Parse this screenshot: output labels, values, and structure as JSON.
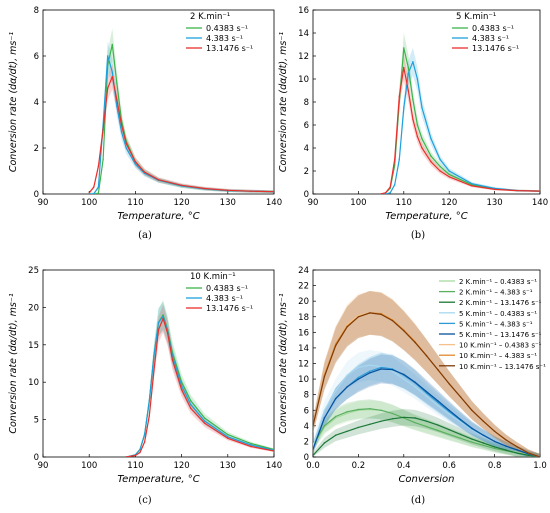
{
  "panel_tags": [
    "(a)",
    "(b)",
    "(c)",
    "(d)"
  ],
  "colors": {
    "0.4383": "#3cb44b",
    "4.383": "#1ea0dc",
    "13.1476": "#e8302c",
    "d": [
      "#a6dba0",
      "#5aae61",
      "#1b7837",
      "#a6d8f0",
      "#2b9ad6",
      "#08519c",
      "#f7c08a",
      "#e08a2c",
      "#7f3b08"
    ]
  },
  "chart_data": [
    {
      "type": "line",
      "title": "",
      "legend_title": "2 K.min⁻¹",
      "legend_position": "top-right",
      "xlabel": "Temperature, °C",
      "ylabel": "Conversion rate (dα/dt), ms⁻¹",
      "xlim": [
        90,
        140
      ],
      "ylim": [
        0,
        8
      ],
      "xticks": [
        "90",
        "100",
        "110",
        "120",
        "130",
        "140"
      ],
      "yticks": [
        "0",
        "2",
        "4",
        "6",
        "8"
      ],
      "x": [
        100,
        101,
        102,
        103,
        104,
        105,
        106,
        107,
        108,
        110,
        112,
        115,
        120,
        125,
        130,
        135,
        140
      ],
      "series": [
        {
          "name": "0.4383 s⁻¹",
          "values": [
            0.0,
            0.0,
            0.03,
            1.5,
            5.6,
            6.5,
            4.8,
            3.2,
            2.3,
            1.4,
            0.95,
            0.6,
            0.35,
            0.22,
            0.15,
            0.12,
            0.1
          ]
        },
        {
          "name": "4.383 s⁻¹",
          "values": [
            0.0,
            0.01,
            0.3,
            3.0,
            6.0,
            5.3,
            3.8,
            2.7,
            2.0,
            1.3,
            0.9,
            0.6,
            0.35,
            0.22,
            0.15,
            0.12,
            0.1
          ]
        },
        {
          "name": "13.1476 s⁻¹",
          "values": [
            0.05,
            0.3,
            1.2,
            2.8,
            4.6,
            5.1,
            4.1,
            3.0,
            2.2,
            1.4,
            0.95,
            0.62,
            0.38,
            0.24,
            0.16,
            0.12,
            0.1
          ]
        }
      ]
    },
    {
      "type": "line",
      "title": "",
      "legend_title": "5 K.min⁻¹",
      "legend_position": "top-right",
      "xlabel": "Temperature, °C",
      "ylabel": "Conversion rate (dα/dt), ms⁻¹",
      "xlim": [
        90,
        140
      ],
      "ylim": [
        0,
        16
      ],
      "xticks": [
        "90",
        "100",
        "110",
        "120",
        "130",
        "140"
      ],
      "yticks": [
        "0",
        "2",
        "4",
        "6",
        "8",
        "10",
        "12",
        "14",
        "16"
      ],
      "x": [
        105,
        106,
        107,
        108,
        109,
        110,
        111,
        112,
        113,
        114,
        116,
        118,
        120,
        125,
        130,
        135,
        140
      ],
      "series": [
        {
          "name": "0.4383 s⁻¹",
          "values": [
            0.0,
            0.1,
            0.5,
            2.5,
            8.0,
            12.7,
            11.0,
            8.2,
            6.0,
            4.8,
            3.3,
            2.4,
            1.7,
            0.8,
            0.45,
            0.3,
            0.25
          ]
        },
        {
          "name": "4.383 s⁻¹",
          "values": [
            0.0,
            0.0,
            0.1,
            0.8,
            3.0,
            7.5,
            10.5,
            11.5,
            10.0,
            7.5,
            4.8,
            3.0,
            2.0,
            0.9,
            0.5,
            0.3,
            0.25
          ]
        },
        {
          "name": "13.1476 s⁻¹",
          "values": [
            0.0,
            0.1,
            0.6,
            3.0,
            8.5,
            11.0,
            9.0,
            6.5,
            5.0,
            4.0,
            2.8,
            2.0,
            1.5,
            0.7,
            0.4,
            0.3,
            0.25
          ]
        }
      ]
    },
    {
      "type": "line",
      "title": "",
      "legend_title": "10 K.min⁻¹",
      "legend_position": "top-right",
      "xlabel": "Temperature, °C",
      "ylabel": "Conversion rate (dα/dt), ms⁻¹",
      "xlim": [
        90,
        140
      ],
      "ylim": [
        0,
        25
      ],
      "xticks": [
        "90",
        "100",
        "110",
        "120",
        "130",
        "140"
      ],
      "yticks": [
        "0",
        "5",
        "10",
        "15",
        "20",
        "25"
      ],
      "x": [
        108,
        110,
        111,
        112,
        113,
        114,
        115,
        116,
        117,
        118,
        120,
        122,
        125,
        130,
        135,
        140
      ],
      "series": [
        {
          "name": "0.4383 s⁻¹",
          "values": [
            0.0,
            0.3,
            1.0,
            3.0,
            7.5,
            13.5,
            18.0,
            19.0,
            17.0,
            14.0,
            10.0,
            7.5,
            5.2,
            3.0,
            1.8,
            1.0
          ]
        },
        {
          "name": "4.383 s⁻¹",
          "values": [
            0.0,
            0.3,
            1.0,
            3.0,
            7.5,
            13.5,
            18.0,
            18.8,
            16.8,
            13.5,
            9.5,
            7.0,
            4.8,
            2.7,
            1.6,
            0.9
          ]
        },
        {
          "name": "13.1476 s⁻¹",
          "values": [
            0.0,
            0.2,
            0.6,
            2.0,
            5.5,
            11.5,
            17.0,
            18.5,
            16.5,
            13.0,
            9.0,
            6.5,
            4.5,
            2.5,
            1.4,
            0.8
          ]
        }
      ]
    },
    {
      "type": "line",
      "title": "",
      "legend_title": "",
      "legend_position": "top-right",
      "xlabel": "Conversion",
      "ylabel": "Conversion rate (dα/dt), ms⁻¹",
      "xlim": [
        0.0,
        1.0
      ],
      "ylim": [
        0,
        24
      ],
      "xticks": [
        "0.0",
        "0.2",
        "0.4",
        "0.6",
        "0.8",
        "1.0"
      ],
      "yticks": [
        "0",
        "2",
        "4",
        "6",
        "8",
        "10",
        "12",
        "14",
        "16",
        "18",
        "20",
        "22",
        "24"
      ],
      "x": [
        0.0,
        0.05,
        0.1,
        0.15,
        0.2,
        0.25,
        0.3,
        0.35,
        0.4,
        0.45,
        0.5,
        0.55,
        0.6,
        0.65,
        0.7,
        0.75,
        0.8,
        0.85,
        0.9,
        0.95,
        1.0
      ],
      "series": [
        {
          "name": "2 K.min⁻¹ – 0.4383 s⁻¹",
          "values": [
            1.2,
            3.8,
            5.0,
            5.6,
            6.0,
            6.1,
            6.0,
            5.6,
            5.0,
            4.5,
            4.0,
            3.5,
            3.0,
            2.5,
            2.0,
            1.6,
            1.2,
            0.9,
            0.6,
            0.3,
            0.0
          ]
        },
        {
          "name": "2 K.min⁻¹ – 4.383 s⁻¹",
          "values": [
            1.5,
            4.0,
            5.2,
            5.8,
            6.1,
            6.2,
            6.0,
            5.6,
            5.0,
            4.4,
            3.9,
            3.4,
            2.9,
            2.4,
            1.9,
            1.5,
            1.1,
            0.8,
            0.5,
            0.25,
            0.0
          ]
        },
        {
          "name": "2 K.min⁻¹ – 13.1476 s⁻¹",
          "values": [
            0.2,
            1.8,
            2.8,
            3.3,
            3.8,
            4.2,
            4.6,
            4.9,
            5.1,
            5.0,
            4.6,
            4.1,
            3.5,
            2.9,
            2.3,
            1.8,
            1.3,
            0.9,
            0.5,
            0.2,
            0.0
          ]
        },
        {
          "name": "5 K.min⁻¹ – 0.4383 s⁻¹",
          "values": [
            1.5,
            6.0,
            8.5,
            10.5,
            11.5,
            11.8,
            11.6,
            11.0,
            10.0,
            9.0,
            7.8,
            6.6,
            5.5,
            4.5,
            3.5,
            2.7,
            2.0,
            1.4,
            0.9,
            0.4,
            0.0
          ]
        },
        {
          "name": "5 K.min⁻¹ – 4.383 s⁻¹",
          "values": [
            1.0,
            5.0,
            7.5,
            9.0,
            10.2,
            11.0,
            11.5,
            11.3,
            10.5,
            9.5,
            8.2,
            7.0,
            5.8,
            4.7,
            3.6,
            2.8,
            2.0,
            1.4,
            0.9,
            0.4,
            0.0
          ]
        },
        {
          "name": "5 K.min⁻¹ – 13.1476 s⁻¹",
          "values": [
            1.0,
            5.0,
            7.5,
            9.0,
            10.0,
            10.8,
            11.3,
            11.2,
            10.6,
            9.6,
            8.4,
            7.2,
            6.0,
            4.8,
            3.7,
            2.8,
            2.0,
            1.4,
            0.9,
            0.4,
            0.0
          ]
        },
        {
          "name": "10 K.min⁻¹ – 0.4383 s⁻¹",
          "values": [
            4.0,
            10.5,
            14.5,
            17.0,
            18.2,
            18.5,
            18.3,
            17.5,
            16.2,
            14.7,
            13.0,
            11.2,
            9.4,
            7.7,
            6.0,
            4.6,
            3.3,
            2.2,
            1.3,
            0.5,
            0.0
          ]
        },
        {
          "name": "10 K.min⁻¹ – 4.383 s⁻¹",
          "values": [
            4.0,
            10.5,
            14.5,
            16.8,
            18.0,
            18.5,
            18.4,
            17.6,
            16.3,
            14.8,
            13.0,
            11.2,
            9.4,
            7.7,
            6.0,
            4.6,
            3.3,
            2.2,
            1.3,
            0.5,
            0.0
          ]
        },
        {
          "name": "10 K.min⁻¹ – 13.1476 s⁻¹",
          "values": [
            4.0,
            10.3,
            14.3,
            16.7,
            18.0,
            18.5,
            18.3,
            17.5,
            16.2,
            14.7,
            13.0,
            11.2,
            9.4,
            7.7,
            6.0,
            4.6,
            3.3,
            2.2,
            1.3,
            0.5,
            0.0
          ]
        }
      ]
    }
  ]
}
